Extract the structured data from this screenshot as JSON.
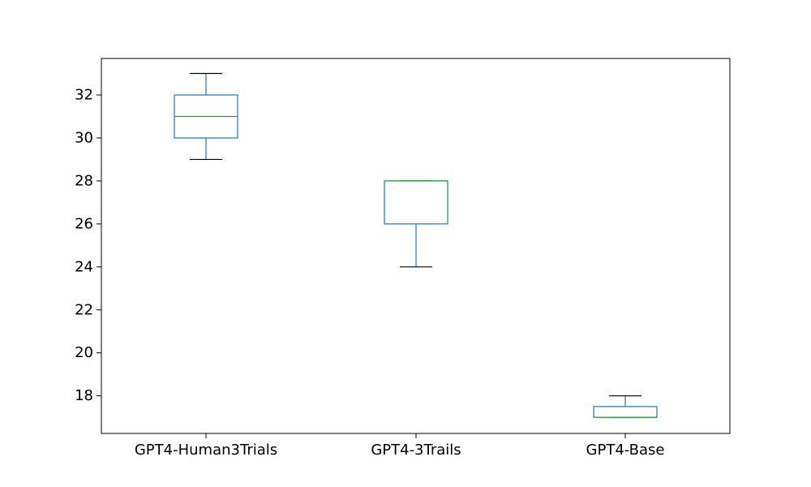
{
  "chart_data": {
    "type": "box",
    "title": "",
    "xlabel": "",
    "ylabel": "",
    "ylim": [
      16.25,
      33.7
    ],
    "yticks": [
      18,
      20,
      22,
      24,
      26,
      28,
      30,
      32
    ],
    "grid": false,
    "colors": {
      "box": "#1f77b4",
      "median": "#2ca02c",
      "whisker_cap": "#000000"
    },
    "categories": [
      "GPT4-Human3Trials",
      "GPT4-3Trails",
      "GPT4-Base"
    ],
    "boxes": [
      {
        "category": "GPT4-Human3Trials",
        "min": 29,
        "q1": 30,
        "median": 31,
        "q3": 32,
        "max": 33
      },
      {
        "category": "GPT4-3Trails",
        "min": 24,
        "q1": 26,
        "median": 28,
        "q3": 28,
        "max": 28
      },
      {
        "category": "GPT4-Base",
        "min": 17,
        "q1": 17,
        "median": 17,
        "q3": 17.5,
        "max": 18
      }
    ]
  }
}
